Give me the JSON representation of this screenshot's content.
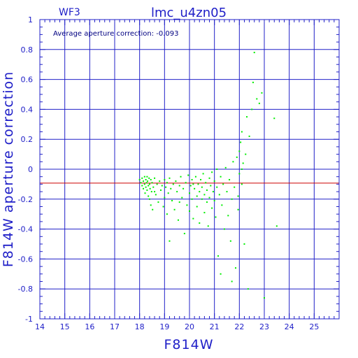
{
  "chart_data": {
    "type": "scatter",
    "title": "lmc_u4zn05",
    "corner_label": "WF3",
    "annotation": "Average aperture correction: -0.093",
    "xlabel": "F814W",
    "ylabel": "F814W aperture correction",
    "xlim": [
      14,
      26
    ],
    "ylim": [
      -1,
      1
    ],
    "x_ticks": [
      14,
      15,
      16,
      17,
      18,
      19,
      20,
      21,
      22,
      23,
      24,
      25
    ],
    "y_ticks": [
      -1,
      -0.8,
      -0.6,
      -0.4,
      -0.2,
      0,
      0.2,
      0.4,
      0.6,
      0.8,
      1
    ],
    "y_tick_labels": [
      "-1",
      "-0.8",
      "-0.6",
      "-0.4",
      "-0.2",
      "0",
      "0.2",
      "0.4",
      "0.6",
      "0.8",
      "1"
    ],
    "grid": true,
    "reference_line": {
      "y": -0.093,
      "color": "#cc0000"
    },
    "colors": {
      "axes": "#2020c8",
      "grid": "#2020c8",
      "points": "#00ee00",
      "reference": "#cc0000"
    },
    "points": [
      [
        18.0,
        -0.07
      ],
      [
        18.05,
        -0.09
      ],
      [
        18.1,
        -0.06
      ],
      [
        18.1,
        -0.11
      ],
      [
        18.15,
        -0.08
      ],
      [
        18.15,
        -0.13
      ],
      [
        18.2,
        -0.05
      ],
      [
        18.2,
        -0.1
      ],
      [
        18.22,
        -0.16
      ],
      [
        18.25,
        -0.07
      ],
      [
        18.25,
        -0.12
      ],
      [
        18.28,
        -0.09
      ],
      [
        18.3,
        -0.05
      ],
      [
        18.3,
        -0.14
      ],
      [
        18.32,
        -0.08
      ],
      [
        18.35,
        -0.11
      ],
      [
        18.35,
        -0.18
      ],
      [
        18.38,
        -0.06
      ],
      [
        18.4,
        -0.1
      ],
      [
        18.4,
        -0.2
      ],
      [
        18.42,
        -0.13
      ],
      [
        18.45,
        -0.07
      ],
      [
        18.45,
        -0.24
      ],
      [
        18.48,
        -0.15
      ],
      [
        18.5,
        -0.09
      ],
      [
        18.52,
        -0.27
      ],
      [
        18.55,
        -0.12
      ],
      [
        18.6,
        -0.06
      ],
      [
        18.65,
        -0.17
      ],
      [
        18.7,
        -0.1
      ],
      [
        18.75,
        -0.22
      ],
      [
        18.8,
        -0.08
      ],
      [
        18.85,
        -0.14
      ],
      [
        18.9,
        -0.11
      ],
      [
        18.95,
        -0.25
      ],
      [
        19.0,
        -0.07
      ],
      [
        19.0,
        -0.19
      ],
      [
        19.05,
        -0.12
      ],
      [
        19.1,
        -0.09
      ],
      [
        19.1,
        -0.3
      ],
      [
        19.15,
        -0.16
      ],
      [
        19.2,
        -0.48
      ],
      [
        19.2,
        -0.06
      ],
      [
        19.25,
        -0.13
      ],
      [
        19.3,
        -0.21
      ],
      [
        19.35,
        -0.1
      ],
      [
        19.4,
        -0.27
      ],
      [
        19.45,
        -0.08
      ],
      [
        19.5,
        -0.15
      ],
      [
        19.55,
        -0.34
      ],
      [
        19.6,
        -0.11
      ],
      [
        19.65,
        -0.05
      ],
      [
        19.7,
        -0.19
      ],
      [
        19.75,
        -0.13
      ],
      [
        19.8,
        -0.43
      ],
      [
        19.85,
        -0.09
      ],
      [
        19.9,
        -0.24
      ],
      [
        19.95,
        -0.04
      ],
      [
        20.0,
        -0.16
      ],
      [
        20.0,
        -0.28
      ],
      [
        20.05,
        -0.11
      ],
      [
        20.1,
        -0.07
      ],
      [
        20.1,
        -0.2
      ],
      [
        20.15,
        -0.33
      ],
      [
        20.2,
        -0.13
      ],
      [
        20.25,
        -0.05
      ],
      [
        20.3,
        -0.18
      ],
      [
        20.3,
        -0.25
      ],
      [
        20.35,
        -0.1
      ],
      [
        20.4,
        -0.15
      ],
      [
        20.4,
        -0.36
      ],
      [
        20.45,
        -0.07
      ],
      [
        20.5,
        -0.2
      ],
      [
        20.5,
        -0.12
      ],
      [
        20.55,
        -0.03
      ],
      [
        20.6,
        -0.17
      ],
      [
        20.6,
        -0.29
      ],
      [
        20.65,
        -0.09
      ],
      [
        20.7,
        -0.22
      ],
      [
        20.7,
        -0.14
      ],
      [
        20.75,
        -0.38
      ],
      [
        20.8,
        -0.06
      ],
      [
        20.8,
        -0.19
      ],
      [
        20.85,
        -0.11
      ],
      [
        20.9,
        -0.26
      ],
      [
        20.9,
        -0.02
      ],
      [
        20.95,
        -0.15
      ],
      [
        21.0,
        -0.08
      ],
      [
        21.0,
        -0.21
      ],
      [
        21.05,
        -0.32
      ],
      [
        21.1,
        -0.12
      ],
      [
        21.1,
        0.0
      ],
      [
        21.15,
        -0.58
      ],
      [
        21.2,
        -0.17
      ],
      [
        21.25,
        -0.05
      ],
      [
        21.3,
        -0.24
      ],
      [
        21.35,
        -0.1
      ],
      [
        21.4,
        -0.4
      ],
      [
        21.45,
        0.01
      ],
      [
        21.5,
        -0.15
      ],
      [
        21.55,
        -0.31
      ],
      [
        21.6,
        -0.07
      ],
      [
        21.65,
        -0.48
      ],
      [
        21.7,
        -0.2
      ],
      [
        21.75,
        0.05
      ],
      [
        21.8,
        -0.12
      ],
      [
        21.85,
        -0.66
      ],
      [
        21.9,
        0.08
      ],
      [
        21.95,
        -0.27
      ],
      [
        22.0,
        0.12
      ],
      [
        22.0,
        -0.03
      ],
      [
        22.05,
        0.18
      ],
      [
        22.1,
        -0.1
      ],
      [
        22.1,
        0.25
      ],
      [
        22.15,
        0.04
      ],
      [
        22.2,
        -0.5
      ],
      [
        22.25,
        0.1
      ],
      [
        22.3,
        0.35
      ],
      [
        22.35,
        -0.8
      ],
      [
        22.4,
        0.22
      ],
      [
        22.5,
        0.4
      ],
      [
        22.55,
        0.58
      ],
      [
        22.6,
        0.78
      ],
      [
        22.7,
        0.47
      ],
      [
        22.8,
        0.44
      ],
      [
        22.9,
        0.51
      ],
      [
        23.0,
        -0.86
      ],
      [
        23.4,
        0.34
      ],
      [
        23.5,
        -0.38
      ],
      [
        21.25,
        -0.7
      ],
      [
        21.7,
        -0.75
      ],
      [
        22.1,
        0.0
      ],
      [
        21.95,
        -0.18
      ],
      [
        20.15,
        -0.1
      ],
      [
        19.6,
        -0.22
      ],
      [
        18.6,
        -0.15
      ]
    ]
  }
}
